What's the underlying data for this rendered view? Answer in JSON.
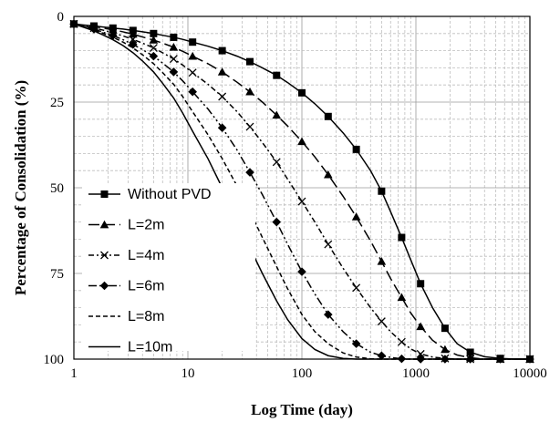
{
  "chart_data": {
    "type": "line",
    "title": "",
    "xlabel": "Log Time (day)",
    "ylabel": "Percentage of Consolidation (%)",
    "x_scale": "log",
    "xlim": [
      1,
      10000
    ],
    "ylim": [
      0,
      100
    ],
    "y_inverted": true,
    "grid": true,
    "legend_position": "bottom-left",
    "x_ticks": [
      "1",
      "10",
      "100",
      "1000",
      "10000"
    ],
    "y_ticks": [
      "0",
      "25",
      "50",
      "75",
      "100"
    ],
    "series": [
      {
        "name": "Without PVD",
        "marker": "square",
        "dash": "solid",
        "x": [
          1,
          1.2,
          1.5,
          1.8,
          2.2,
          2.7,
          3.3,
          4,
          5,
          6,
          7.5,
          9,
          11,
          15,
          20,
          27,
          35,
          45,
          60,
          75,
          100,
          130,
          170,
          230,
          300,
          400,
          500,
          600,
          750,
          900,
          1100,
          1400,
          1800,
          2300,
          3000,
          4000,
          5500,
          7500,
          10000
        ],
        "y": [
          2.2,
          2.5,
          2.8,
          3.1,
          3.4,
          3.7,
          4.1,
          4.5,
          5.0,
          5.5,
          6.1,
          6.7,
          7.5,
          8.7,
          10.0,
          11.6,
          13.2,
          15.0,
          17.2,
          19.3,
          22.3,
          25.5,
          29.2,
          34.0,
          38.8,
          45.0,
          51.0,
          57.0,
          64.5,
          71.0,
          78.0,
          85.0,
          91.0,
          95.5,
          98.0,
          99.3,
          99.8,
          100,
          100
        ]
      },
      {
        "name": "L=2m",
        "marker": "triangle",
        "dash": "longdash",
        "x": [
          1,
          1.2,
          1.5,
          1.8,
          2.2,
          2.7,
          3.3,
          4,
          5,
          6,
          7.5,
          9,
          11,
          15,
          20,
          27,
          35,
          45,
          60,
          75,
          100,
          130,
          170,
          230,
          300,
          400,
          500,
          600,
          750,
          900,
          1100,
          1400,
          1800,
          2300,
          3000,
          4000,
          5500,
          7500,
          10000
        ],
        "y": [
          2.2,
          2.6,
          3.0,
          3.4,
          3.9,
          4.5,
          5.2,
          6.0,
          6.9,
          7.8,
          9.0,
          10.2,
          11.6,
          13.8,
          16.2,
          19.2,
          22.0,
          25.0,
          28.8,
          32.0,
          36.5,
          41.0,
          46.2,
          52.5,
          58.5,
          65.5,
          71.5,
          76.5,
          82.0,
          86.5,
          90.5,
          94.5,
          97.2,
          98.8,
          99.6,
          100,
          100,
          100,
          100
        ]
      },
      {
        "name": "L=4m",
        "marker": "cross",
        "dash": "dashdot",
        "x": [
          1,
          1.2,
          1.5,
          1.8,
          2.2,
          2.7,
          3.3,
          4,
          5,
          6,
          7.5,
          9,
          11,
          15,
          20,
          27,
          35,
          45,
          60,
          75,
          100,
          130,
          170,
          230,
          300,
          400,
          500,
          600,
          750,
          900,
          1100,
          1400,
          1800,
          2300,
          3000,
          4000,
          5500,
          7500,
          10000
        ],
        "y": [
          2.2,
          2.8,
          3.4,
          4.0,
          4.8,
          5.7,
          6.7,
          7.8,
          9.2,
          10.6,
          12.4,
          14.2,
          16.4,
          19.8,
          23.4,
          27.8,
          32.2,
          36.8,
          42.5,
          47.5,
          54.0,
          60.0,
          66.5,
          73.5,
          79.2,
          85.0,
          89.0,
          92.0,
          95.0,
          97.0,
          98.5,
          99.4,
          99.8,
          100,
          100,
          100,
          100,
          100,
          100
        ]
      },
      {
        "name": "L=6m",
        "marker": "diamond",
        "dash": "dashdotdot",
        "x": [
          1,
          1.2,
          1.5,
          1.8,
          2.2,
          2.7,
          3.3,
          4,
          5,
          6,
          7.5,
          9,
          11,
          15,
          20,
          27,
          35,
          45,
          60,
          75,
          100,
          130,
          170,
          230,
          300,
          400,
          500,
          600,
          750,
          900,
          1100,
          1400,
          1800,
          2300,
          3000,
          4000,
          5500,
          7500,
          10000
        ],
        "y": [
          2.2,
          2.9,
          3.7,
          4.6,
          5.6,
          6.8,
          8.2,
          9.7,
          11.6,
          13.6,
          16.2,
          18.8,
          22.0,
          27.0,
          32.5,
          39.0,
          45.5,
          52.0,
          60.0,
          66.5,
          74.5,
          81.0,
          87.0,
          92.0,
          95.5,
          98.0,
          99.0,
          99.5,
          99.9,
          100,
          100,
          100,
          100,
          100,
          100,
          100,
          100,
          100,
          100
        ]
      },
      {
        "name": "L=8m",
        "marker": "none",
        "dash": "shortdash",
        "x": [
          1,
          1.2,
          1.5,
          1.8,
          2.2,
          2.7,
          3.3,
          4,
          5,
          6,
          7.5,
          9,
          11,
          15,
          20,
          27,
          35,
          45,
          60,
          75,
          100,
          130,
          170,
          230,
          300,
          400,
          500,
          600,
          750,
          900,
          1100,
          1400,
          1800,
          2300,
          3000,
          4000,
          5500,
          7500,
          10000
        ],
        "y": [
          2.2,
          3.0,
          3.9,
          4.9,
          6.1,
          7.5,
          9.2,
          11.2,
          13.8,
          16.4,
          19.8,
          23.4,
          27.8,
          34.5,
          41.5,
          49.5,
          57.0,
          64.5,
          73.0,
          79.5,
          87.0,
          92.0,
          95.5,
          98.2,
          99.4,
          99.9,
          100,
          100,
          100,
          100,
          100,
          100,
          100,
          100,
          100,
          100,
          100,
          100,
          100
        ]
      },
      {
        "name": "L=10m",
        "marker": "none",
        "dash": "solid",
        "x": [
          1,
          1.2,
          1.5,
          1.8,
          2.2,
          2.7,
          3.3,
          4,
          5,
          6,
          7.5,
          9,
          11,
          15,
          20,
          27,
          35,
          45,
          60,
          75,
          100,
          130,
          170,
          230,
          300,
          400,
          500,
          600,
          750,
          900,
          1100,
          1400,
          1800,
          2300,
          3000,
          4000,
          5500,
          7500,
          10000
        ],
        "y": [
          2.2,
          3.1,
          4.2,
          5.4,
          6.8,
          8.5,
          10.6,
          13.0,
          16.2,
          19.5,
          23.8,
          28.2,
          33.5,
          41.5,
          50.0,
          59.0,
          67.5,
          75.0,
          83.0,
          88.5,
          94.0,
          97.2,
          99.0,
          99.8,
          100,
          100,
          100,
          100,
          100,
          100,
          100,
          100,
          100,
          100,
          100,
          100,
          100,
          100,
          100
        ]
      }
    ]
  }
}
